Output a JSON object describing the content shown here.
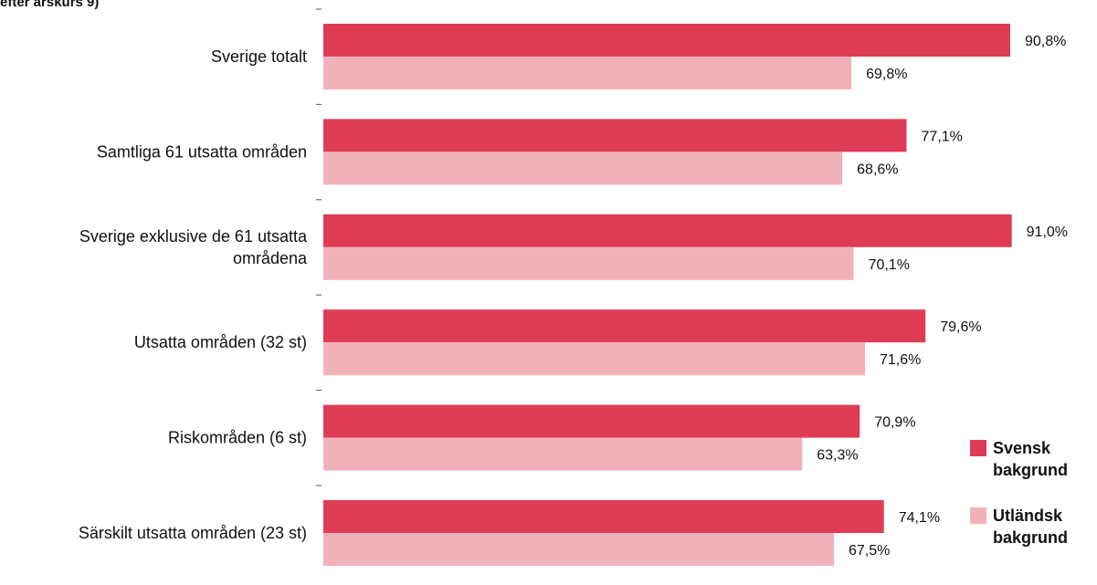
{
  "chart_data": {
    "type": "bar",
    "orientation": "horizontal",
    "title_fragment": "efter årskurs 9)",
    "categories": [
      [
        "Sverige totalt"
      ],
      [
        "Samtliga 61 utsatta områden"
      ],
      [
        "Sverige exklusive de 61 utsatta",
        "områdena"
      ],
      [
        "Utsatta områden (32 st)"
      ],
      [
        "Riskområden (6 st)"
      ],
      [
        "Särskilt utsatta områden (23 st)"
      ]
    ],
    "series": [
      {
        "name": "Svensk bakgrund",
        "legend_lines": [
          "Svensk",
          "bakgrund"
        ],
        "color": "#de3c55",
        "values": [
          90.8,
          77.1,
          91.0,
          79.6,
          70.9,
          74.1
        ],
        "labels": [
          "90,8%",
          "77,1%",
          "91,0%",
          "79,6%",
          "70,9%",
          "74,1%"
        ]
      },
      {
        "name": "Utländsk bakgrund",
        "legend_lines": [
          "Utländsk",
          "bakgrund"
        ],
        "color": "#f2b1ba",
        "values": [
          69.8,
          68.6,
          70.1,
          71.6,
          63.3,
          67.5
        ],
        "labels": [
          "69,8%",
          "68,6%",
          "70,1%",
          "71,6%",
          "63,3%",
          "67,5%"
        ]
      }
    ],
    "xlim": [
      0,
      100
    ],
    "grid": false,
    "legend_position": "bottom-right"
  }
}
